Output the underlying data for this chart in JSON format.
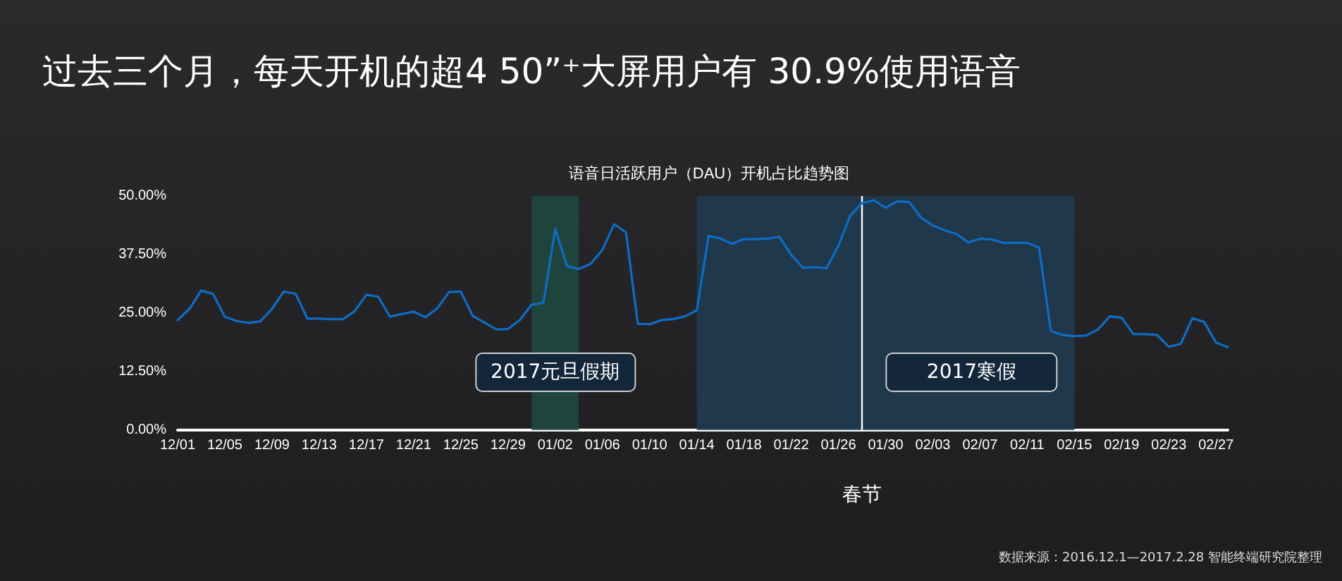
{
  "chart_data": {
    "type": "line",
    "title": "过去三个月，每天开机的超4 50”⁺大屏用户有 30.9%使用语音",
    "subtitle": "语音日活跃用户（DAU）开机占比趋势图",
    "annotations": [
      "数据来源：2016.12.1—2017.2.28 智能终端研究院整理"
    ],
    "x": [
      "2016-12-01",
      "2016-12-02",
      "2016-12-03",
      "2016-12-04",
      "2016-12-05",
      "2016-12-06",
      "2016-12-07",
      "2016-12-08",
      "2016-12-09",
      "2016-12-10",
      "2016-12-11",
      "2016-12-12",
      "2016-12-13",
      "2016-12-14",
      "2016-12-15",
      "2016-12-16",
      "2016-12-17",
      "2016-12-18",
      "2016-12-19",
      "2016-12-20",
      "2016-12-21",
      "2016-12-22",
      "2016-12-23",
      "2016-12-24",
      "2016-12-25",
      "2016-12-26",
      "2016-12-27",
      "2016-12-28",
      "2016-12-29",
      "2016-12-30",
      "2016-12-31",
      "2017-01-01",
      "2017-01-02",
      "2017-01-03",
      "2017-01-04",
      "2017-01-05",
      "2017-01-06",
      "2017-01-07",
      "2017-01-08",
      "2017-01-09",
      "2017-01-10",
      "2017-01-11",
      "2017-01-12",
      "2017-01-13",
      "2017-01-14",
      "2017-01-15",
      "2017-01-16",
      "2017-01-17",
      "2017-01-18",
      "2017-01-19",
      "2017-01-20",
      "2017-01-21",
      "2017-01-22",
      "2017-01-23",
      "2017-01-24",
      "2017-01-25",
      "2017-01-26",
      "2017-01-27",
      "2017-01-28",
      "2017-01-29",
      "2017-01-30",
      "2017-01-31",
      "2017-02-01",
      "2017-02-02",
      "2017-02-03",
      "2017-02-04",
      "2017-02-05",
      "2017-02-06",
      "2017-02-07",
      "2017-02-08",
      "2017-02-09",
      "2017-02-10",
      "2017-02-11",
      "2017-02-12",
      "2017-02-13",
      "2017-02-14",
      "2017-02-15",
      "2017-02-16",
      "2017-02-17",
      "2017-02-18",
      "2017-02-19",
      "2017-02-20",
      "2017-02-21",
      "2017-02-22",
      "2017-02-23",
      "2017-02-24",
      "2017-02-25",
      "2017-02-26",
      "2017-02-27",
      "2017-02-28"
    ],
    "series": [
      {
        "color": "#0f6cc4",
        "values": [
          23.5,
          25.9,
          29.8,
          29.1,
          24.2,
          23.3,
          22.9,
          23.2,
          25.9,
          29.6,
          29.1,
          23.8,
          23.8,
          23.7,
          23.7,
          25.4,
          28.9,
          28.5,
          24.2,
          24.8,
          25.3,
          24.1,
          26.0,
          29.5,
          29.6,
          24.4,
          23.0,
          21.5,
          21.6,
          23.5,
          26.8,
          27.2,
          43.0,
          35.0,
          34.4,
          35.5,
          38.5,
          44.0,
          42.2,
          22.7,
          22.6,
          23.5,
          23.7,
          24.3,
          25.6,
          41.5,
          40.9,
          39.8,
          40.8,
          40.8,
          40.9,
          41.3,
          37.4,
          34.7,
          34.8,
          34.6,
          39.4,
          45.8,
          48.5,
          49.1,
          47.5,
          48.9,
          48.7,
          45.4,
          43.7,
          42.7,
          41.9,
          40.1,
          40.9,
          40.7,
          40.0,
          40.0,
          40.0,
          39.0,
          21.2,
          20.3,
          20.1,
          20.2,
          21.5,
          24.3,
          24.0,
          20.5,
          20.5,
          20.3,
          17.8,
          18.4,
          23.9,
          23.1,
          18.7,
          17.7
        ]
      }
    ],
    "xlim": [
      "2016-12-01",
      "2017-02-28"
    ],
    "xticks": [
      {
        "value": "2016-12-01",
        "label": "12/01"
      },
      {
        "value": "2016-12-05",
        "label": "12/05"
      },
      {
        "value": "2016-12-09",
        "label": "12/09"
      },
      {
        "value": "2016-12-13",
        "label": "12/13"
      },
      {
        "value": "2016-12-17",
        "label": "12/17"
      },
      {
        "value": "2016-12-21",
        "label": "12/21"
      },
      {
        "value": "2016-12-25",
        "label": "12/25"
      },
      {
        "value": "2016-12-29",
        "label": "12/29"
      },
      {
        "value": "2017-01-02",
        "label": "01/02"
      },
      {
        "value": "2017-01-06",
        "label": "01/06"
      },
      {
        "value": "2017-01-10",
        "label": "01/10"
      },
      {
        "value": "2017-01-14",
        "label": "01/14"
      },
      {
        "value": "2017-01-18",
        "label": "01/18"
      },
      {
        "value": "2017-01-22",
        "label": "01/22"
      },
      {
        "value": "2017-01-26",
        "label": "01/26"
      },
      {
        "value": "2017-01-30",
        "label": "01/30"
      },
      {
        "value": "2017-02-03",
        "label": "02/03"
      },
      {
        "value": "2017-02-07",
        "label": "02/07"
      },
      {
        "value": "2017-02-11",
        "label": "02/11"
      },
      {
        "value": "2017-02-15",
        "label": "02/15"
      },
      {
        "value": "2017-02-19",
        "label": "02/19"
      },
      {
        "value": "2017-02-23",
        "label": "02/23"
      },
      {
        "value": "2017-02-27",
        "label": "02/27"
      }
    ],
    "ylim": [
      0,
      50
    ],
    "yticks": [
      {
        "value": 0,
        "label": "0.00%"
      },
      {
        "value": 12.5,
        "label": "12.50%"
      },
      {
        "value": 25,
        "label": "25.00%"
      },
      {
        "value": 37.5,
        "label": "37.50%"
      },
      {
        "value": 50,
        "label": "50.00%"
      }
    ],
    "bands": [
      {
        "axis": "x",
        "from": "2016-12-31",
        "to": "2017-01-04",
        "label": "2017元旦假期",
        "color": "#1f4a43"
      },
      {
        "axis": "x",
        "from": "2017-01-14",
        "to": "2017-02-15",
        "label": "2017寒假",
        "color": "#1f3c52"
      }
    ],
    "ref_lines": [
      {
        "axis": "x",
        "value": "2017-01-28",
        "label": "春节",
        "color": "#ffffff"
      }
    ],
    "grid": false,
    "marker": "none",
    "line_style": "solid"
  }
}
